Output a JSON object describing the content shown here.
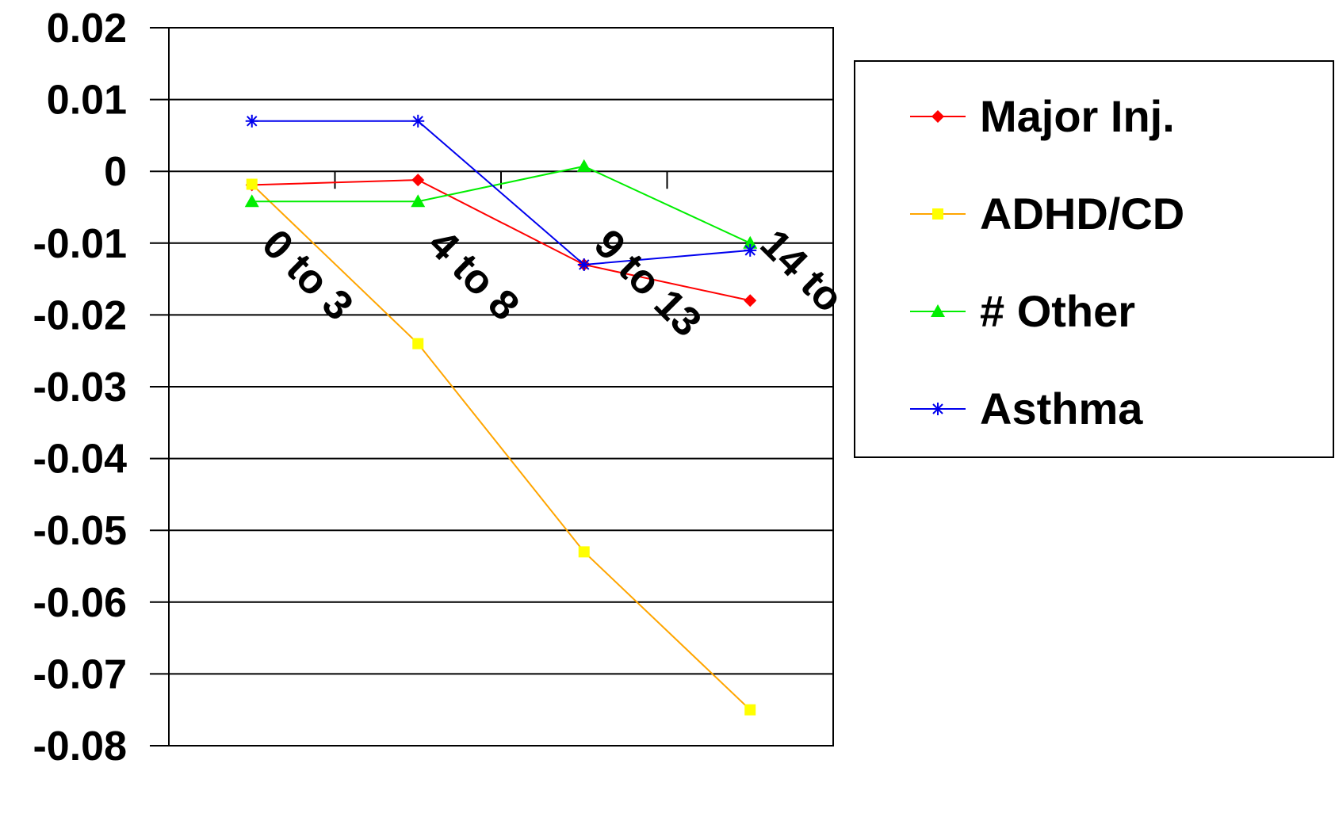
{
  "chart_data": {
    "type": "line",
    "categories": [
      "0 to 3",
      "4 to 8",
      "9 to 13",
      "14 to"
    ],
    "ylim": [
      -0.08,
      0.02
    ],
    "yticks": [
      "0.02",
      "0.01",
      "0",
      "-0.01",
      "-0.02",
      "-0.03",
      "-0.04",
      "-0.05",
      "-0.06",
      "-0.07",
      "-0.08"
    ],
    "grid": true,
    "legend_position": "right",
    "series": [
      {
        "name": "Major Inj.",
        "color": "#ff0000",
        "marker": "diamond",
        "values": [
          -0.0019,
          -0.0012,
          -0.013,
          -0.018
        ]
      },
      {
        "name": "ADHD/CD",
        "color": "#ffa500",
        "marker_color": "#ffff00",
        "marker": "square",
        "values": [
          -0.0018,
          -0.024,
          -0.053,
          -0.075
        ]
      },
      {
        "name": "# Other",
        "color": "#00ee00",
        "marker": "triangle",
        "values": [
          -0.0042,
          -0.0042,
          0.0007,
          -0.01
        ]
      },
      {
        "name": "Asthma",
        "color": "#0000ee",
        "marker": "asterisk",
        "values": [
          0.007,
          0.007,
          -0.013,
          -0.011
        ]
      }
    ]
  }
}
